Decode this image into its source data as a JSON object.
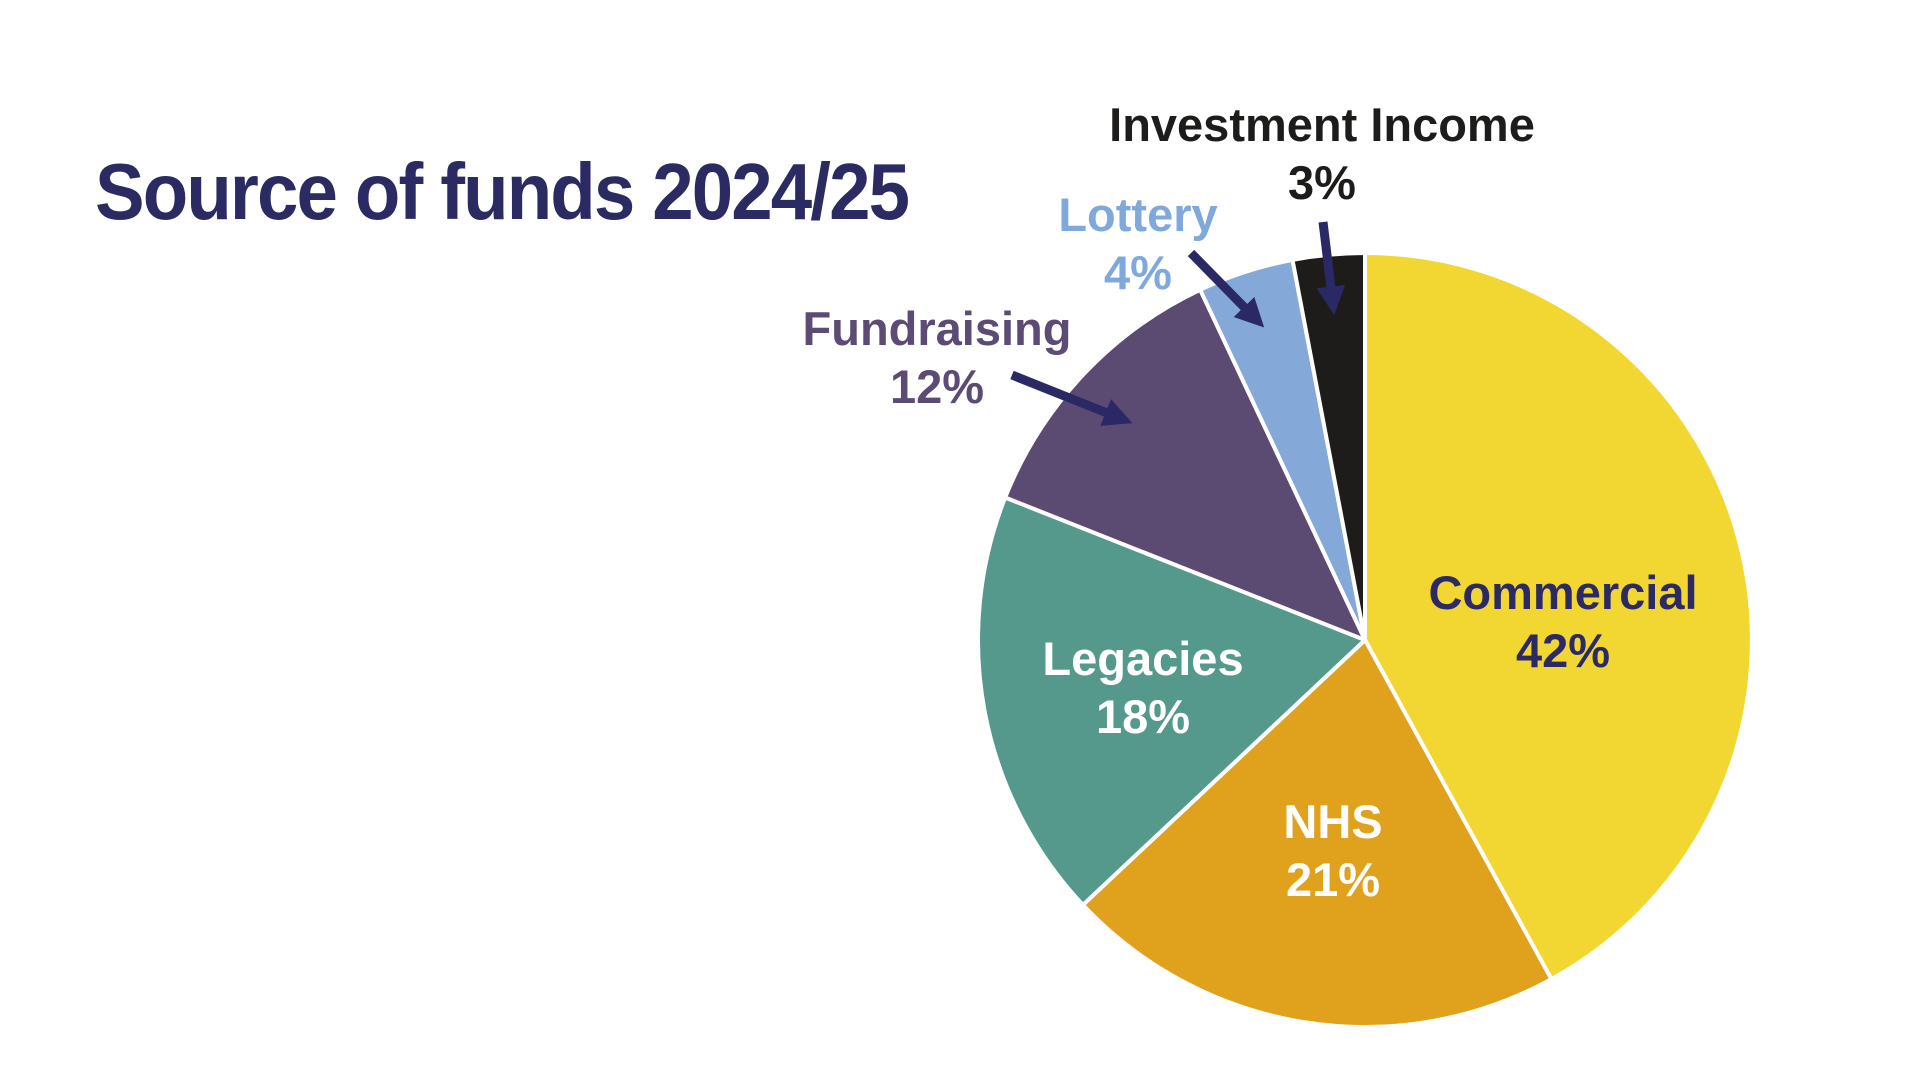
{
  "title": "Source of funds 2024/25",
  "colors": {
    "background": "#ffffff",
    "title_text": "#2b2a62",
    "arrow": "#2b2866",
    "slice_divider": "#ffffff"
  },
  "chart_data": {
    "type": "pie",
    "title": "Source of funds 2024/25",
    "start_angle": "12 o'clock",
    "direction": "clockwise",
    "total": 100,
    "legend_position": "none (direct labels)",
    "slices": [
      {
        "label": "Commercial",
        "value": 42,
        "pct_label": "42%",
        "color": "#f2d733",
        "label_color": "#2b2a66",
        "label_placement": "inside"
      },
      {
        "label": "NHS",
        "value": 21,
        "pct_label": "21%",
        "color": "#e0a11c",
        "label_color": "#ffffff",
        "label_placement": "inside"
      },
      {
        "label": "Legacies",
        "value": 18,
        "pct_label": "18%",
        "color": "#54998c",
        "label_color": "#ffffff",
        "label_placement": "inside"
      },
      {
        "label": "Fundraising",
        "value": 12,
        "pct_label": "12%",
        "color": "#5b4a72",
        "label_color": "#5c4b75",
        "label_placement": "outside-arrow"
      },
      {
        "label": "Lottery",
        "value": 4,
        "pct_label": "4%",
        "color": "#84a9d8",
        "label_color": "#7fa8dc",
        "label_placement": "outside-arrow"
      },
      {
        "label": "Investment Income",
        "value": 3,
        "pct_label": "3%",
        "color": "#1d1c1b",
        "label_color": "#1d1c1b",
        "label_placement": "outside-arrow"
      }
    ]
  }
}
